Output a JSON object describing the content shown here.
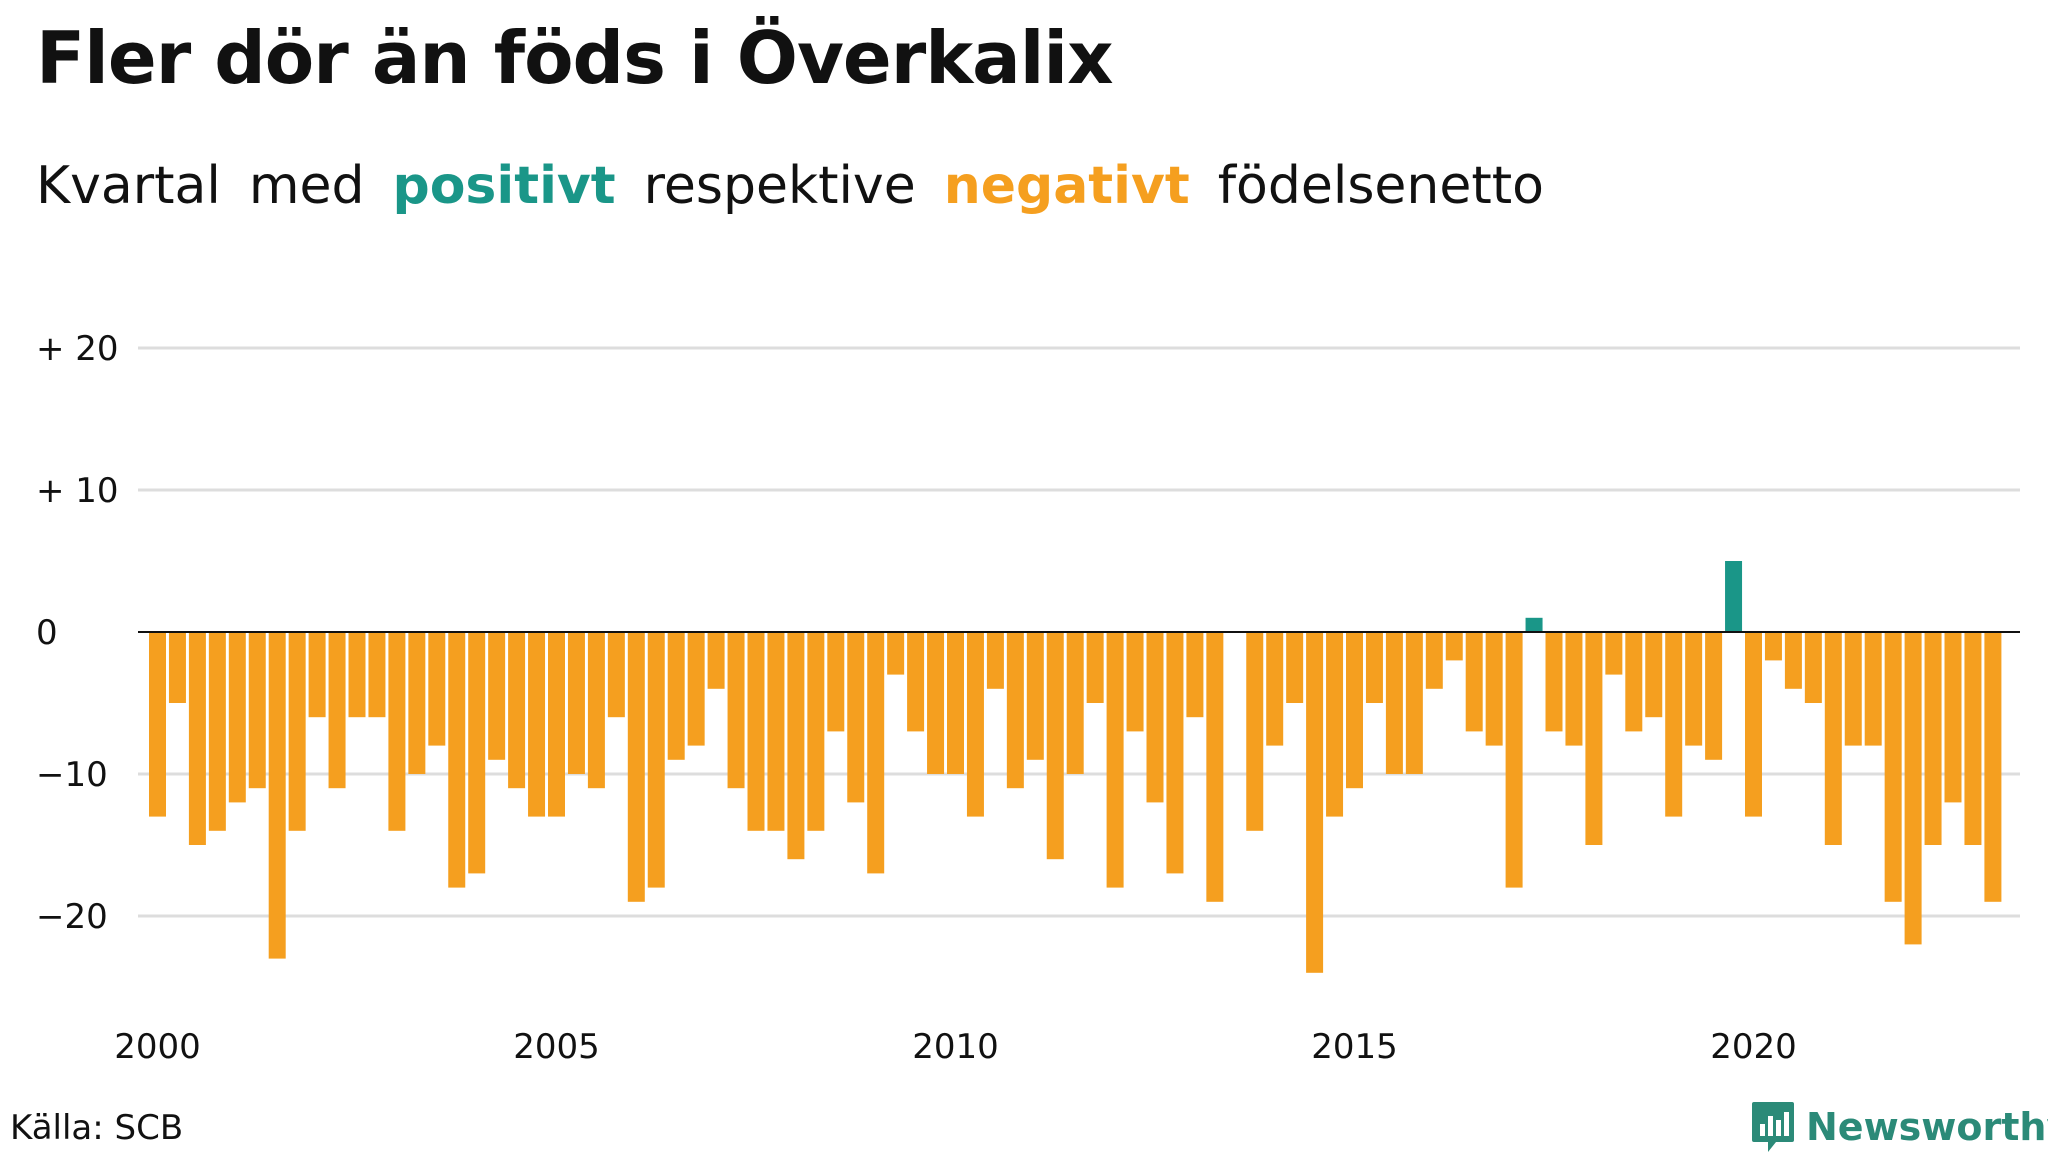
{
  "title": "Fler dör än föds i Överkalix",
  "subtitle": {
    "w1": "Kvartal",
    "w2": "med",
    "positive": "positivt",
    "w3": "respektive",
    "negative": "negativt",
    "w4": "födelsenetto"
  },
  "source": "Källa: SCB",
  "brand": "Newsworthy",
  "colors": {
    "positive": "#1a9688",
    "negative": "#f59f1f",
    "grid": "#dddddd",
    "zero": "#111111"
  },
  "chart_data": {
    "type": "bar",
    "title": "Fler dör än föds i Överkalix",
    "xlabel": "",
    "ylabel": "",
    "x_start": 2000,
    "periods_per_year": 4,
    "ylim": [
      -26,
      22
    ],
    "yticks": [
      {
        "value": 20,
        "label": "+ 20"
      },
      {
        "value": 10,
        "label": "+ 10"
      },
      {
        "value": 0,
        "label": "0"
      },
      {
        "value": -10,
        "label": "−10"
      },
      {
        "value": -20,
        "label": "−20"
      }
    ],
    "xticks": [
      {
        "value": 2000,
        "label": "2000"
      },
      {
        "value": 2005,
        "label": "2005"
      },
      {
        "value": 2010,
        "label": "2010"
      },
      {
        "value": 2015,
        "label": "2015"
      },
      {
        "value": 2020,
        "label": "2020"
      }
    ],
    "grid": true,
    "values": [
      -13,
      -5,
      -15,
      -14,
      -12,
      -11,
      -23,
      -14,
      -6,
      -11,
      -6,
      -6,
      -14,
      -10,
      -8,
      -18,
      -17,
      -9,
      -11,
      -13,
      -13,
      -10,
      -11,
      -6,
      -19,
      -18,
      -9,
      -8,
      -4,
      -11,
      -14,
      -14,
      -16,
      -14,
      -7,
      -12,
      -17,
      -3,
      -7,
      -10,
      -10,
      -13,
      -4,
      -11,
      -9,
      -16,
      -10,
      -5,
      -18,
      -7,
      -12,
      -17,
      -6,
      -19,
      0,
      -14,
      -8,
      -5,
      -24,
      -13,
      -11,
      -5,
      -10,
      -10,
      -4,
      -2,
      -7,
      -8,
      -18,
      1,
      -7,
      -8,
      -15,
      -3,
      -7,
      -6,
      -13,
      -8,
      -9,
      5,
      -13,
      -2,
      -4,
      -5,
      -15,
      -8,
      -8,
      -19,
      -22,
      -15,
      -12,
      -15,
      -19
    ]
  }
}
